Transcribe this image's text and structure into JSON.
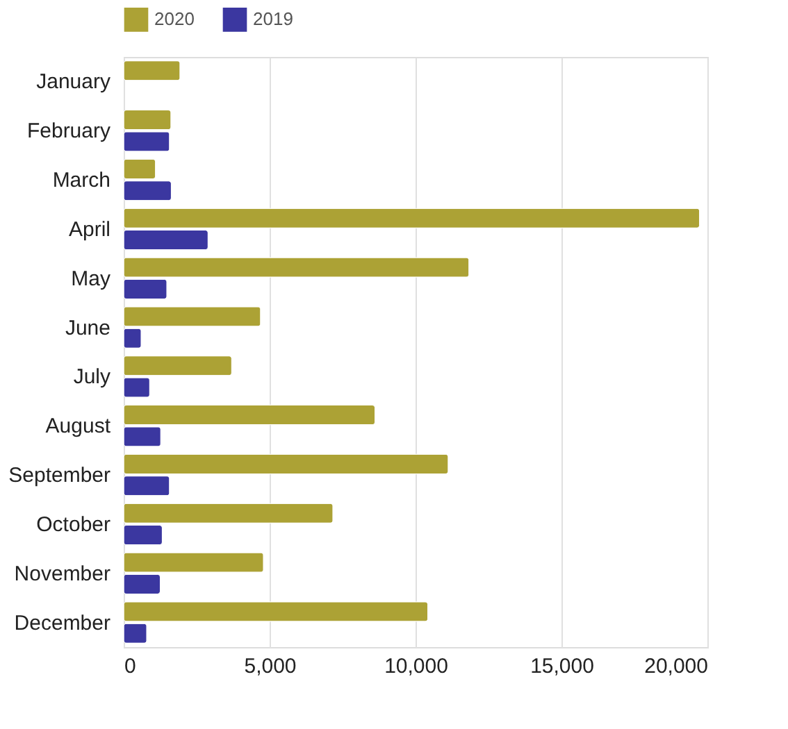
{
  "chart_data": {
    "type": "bar",
    "orientation": "horizontal",
    "categories": [
      "January",
      "February",
      "March",
      "April",
      "May",
      "June",
      "July",
      "August",
      "September",
      "October",
      "November",
      "December"
    ],
    "series": [
      {
        "name": "2020",
        "color": "#aca235",
        "values": [
          1930,
          1620,
          1090,
          19730,
          11830,
          4690,
          3700,
          8610,
          11120,
          7170,
          4790,
          10420
        ]
      },
      {
        "name": "2019",
        "color": "#3b37a0",
        "values": [
          null,
          1570,
          1630,
          2890,
          1480,
          600,
          890,
          1270,
          1570,
          1320,
          1250,
          790
        ]
      }
    ],
    "xlim": [
      0,
      20000
    ],
    "xticks": [
      0,
      {
        "value": 5000,
        "label": "5,000"
      },
      {
        "value": 10000,
        "label": "10,000"
      },
      {
        "value": 15000,
        "label": "15,000"
      },
      {
        "value": 20000,
        "label": "20,000"
      }
    ],
    "grid": "x",
    "legend": "top"
  }
}
